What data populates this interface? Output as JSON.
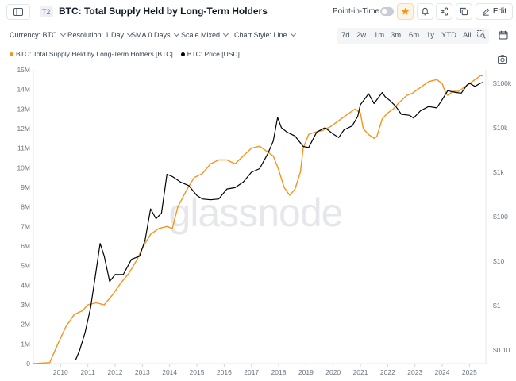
{
  "header": {
    "sidebar_icon": "sidebar-panel-icon",
    "badge": "T2",
    "title": "BTC: Total Supply Held by Long-Term Holders",
    "point_in_time_label": "Point-in-Time",
    "point_in_time_on": false,
    "edit_label": "Edit",
    "accent_color": "#f7931a"
  },
  "toolbar": {
    "dropdowns": [
      {
        "label": "Currency: BTC"
      },
      {
        "label": "Resolution: 1 Day"
      },
      {
        "label": "SMA 0 Days"
      },
      {
        "label": "Scale Mixed"
      },
      {
        "label": "Chart Style: Line"
      }
    ],
    "ranges": [
      "7d",
      "2w",
      "1m",
      "3m",
      "6m",
      "1y",
      "YTD",
      "All"
    ]
  },
  "legend": [
    {
      "label": "BTC: Total Supply Held by Long-Term Holders [BTC]",
      "color": "#f7931a"
    },
    {
      "label": "BTC: Price [USD]",
      "color": "#000000"
    }
  ],
  "watermark": "glassnode",
  "chart_data": {
    "type": "line",
    "title": "BTC: Total Supply Held by Long-Term Holders",
    "x_ticks": [
      "2010",
      "2011",
      "2012",
      "2013",
      "2014",
      "2015",
      "2016",
      "2017",
      "2018",
      "2019",
      "2020",
      "2021",
      "2022",
      "2023",
      "2024",
      "2025"
    ],
    "xlim": [
      2009.0,
      2025.6
    ],
    "left_axis": {
      "ticks": [
        "0",
        "1M",
        "2M",
        "3M",
        "4M",
        "5M",
        "6M",
        "7M",
        "8M",
        "9M",
        "10M",
        "11M",
        "12M",
        "13M",
        "14M",
        "15M"
      ],
      "ylim": [
        0,
        15000000
      ],
      "scale": "linear"
    },
    "right_axis": {
      "ticks": [
        "$0.10",
        "$1",
        "$10",
        "$100",
        "$1k",
        "$10k",
        "$100k"
      ],
      "ylim": [
        0.05,
        200000
      ],
      "scale": "log"
    },
    "grid": false,
    "legend_position": "top-left",
    "series": [
      {
        "name": "BTC: Total Supply Held by Long-Term Holders [BTC]",
        "axis": "left",
        "color": "#f7931a",
        "x": [
          2009.0,
          2009.6,
          2009.9,
          2010.2,
          2010.5,
          2010.8,
          2011.0,
          2011.3,
          2011.6,
          2011.9,
          2012.2,
          2012.5,
          2012.8,
          2013.0,
          2013.3,
          2013.6,
          2013.9,
          2014.1,
          2014.3,
          2014.6,
          2014.9,
          2015.2,
          2015.5,
          2015.8,
          2016.1,
          2016.4,
          2016.7,
          2017.0,
          2017.3,
          2017.6,
          2017.8,
          2018.0,
          2018.2,
          2018.4,
          2018.6,
          2018.8,
          2018.9,
          2019.1,
          2019.3,
          2019.6,
          2019.9,
          2020.2,
          2020.5,
          2020.8,
          2021.0,
          2021.1,
          2021.3,
          2021.5,
          2021.6,
          2021.8,
          2022.0,
          2022.2,
          2022.4,
          2022.7,
          2022.9,
          2023.2,
          2023.5,
          2023.8,
          2024.0,
          2024.1,
          2024.2,
          2024.4,
          2024.6,
          2024.8,
          2025.0,
          2025.2,
          2025.4,
          2025.5
        ],
        "values": [
          0,
          50000,
          1000000,
          1900000,
          2500000,
          2700000,
          3000000,
          3100000,
          3000000,
          3500000,
          4100000,
          4600000,
          5300000,
          5900000,
          6600000,
          6900000,
          7000000,
          6900000,
          8000000,
          8800000,
          9500000,
          9700000,
          10200000,
          10400000,
          10400000,
          10200000,
          10600000,
          11000000,
          11100000,
          10800000,
          10600000,
          9900000,
          9000000,
          8600000,
          8900000,
          9800000,
          11000000,
          11700000,
          11800000,
          11900000,
          12100000,
          12400000,
          12700000,
          13000000,
          12800000,
          12000000,
          11700000,
          11500000,
          11600000,
          12500000,
          12800000,
          13000000,
          13300000,
          13700000,
          13800000,
          14100000,
          14400000,
          14500000,
          14300000,
          13900000,
          13700000,
          13900000,
          13900000,
          14100000,
          14300000,
          14500000,
          14700000,
          14700000
        ]
      },
      {
        "name": "BTC: Price [USD]",
        "axis": "right",
        "color": "#000000",
        "x": [
          2010.55,
          2010.7,
          2010.9,
          2011.1,
          2011.3,
          2011.45,
          2011.6,
          2011.8,
          2012.0,
          2012.3,
          2012.6,
          2012.9,
          2013.1,
          2013.3,
          2013.5,
          2013.7,
          2013.9,
          2014.1,
          2014.4,
          2014.7,
          2015.0,
          2015.2,
          2015.5,
          2015.8,
          2016.1,
          2016.4,
          2016.7,
          2017.0,
          2017.3,
          2017.6,
          2017.8,
          2017.96,
          2018.1,
          2018.3,
          2018.6,
          2018.9,
          2019.1,
          2019.4,
          2019.7,
          2020.0,
          2020.2,
          2020.4,
          2020.7,
          2020.9,
          2021.0,
          2021.3,
          2021.5,
          2021.8,
          2021.9,
          2022.1,
          2022.3,
          2022.5,
          2022.8,
          2022.95,
          2023.2,
          2023.5,
          2023.8,
          2024.0,
          2024.2,
          2024.5,
          2024.7,
          2024.9,
          2025.0,
          2025.2,
          2025.4,
          2025.5
        ],
        "values": [
          0.06,
          0.1,
          0.25,
          0.9,
          6,
          25,
          13,
          3.5,
          5,
          5,
          11,
          13,
          30,
          150,
          90,
          120,
          900,
          800,
          600,
          500,
          300,
          250,
          240,
          250,
          420,
          450,
          600,
          1000,
          1200,
          2600,
          5000,
          17000,
          10000,
          8000,
          6500,
          3800,
          3600,
          8000,
          10000,
          7200,
          6000,
          9000,
          11000,
          18000,
          33000,
          58000,
          35000,
          62000,
          50000,
          40000,
          30000,
          20000,
          19000,
          16500,
          24000,
          30000,
          28000,
          43000,
          68000,
          62000,
          60000,
          90000,
          100000,
          85000,
          100000,
          105000
        ]
      }
    ]
  }
}
